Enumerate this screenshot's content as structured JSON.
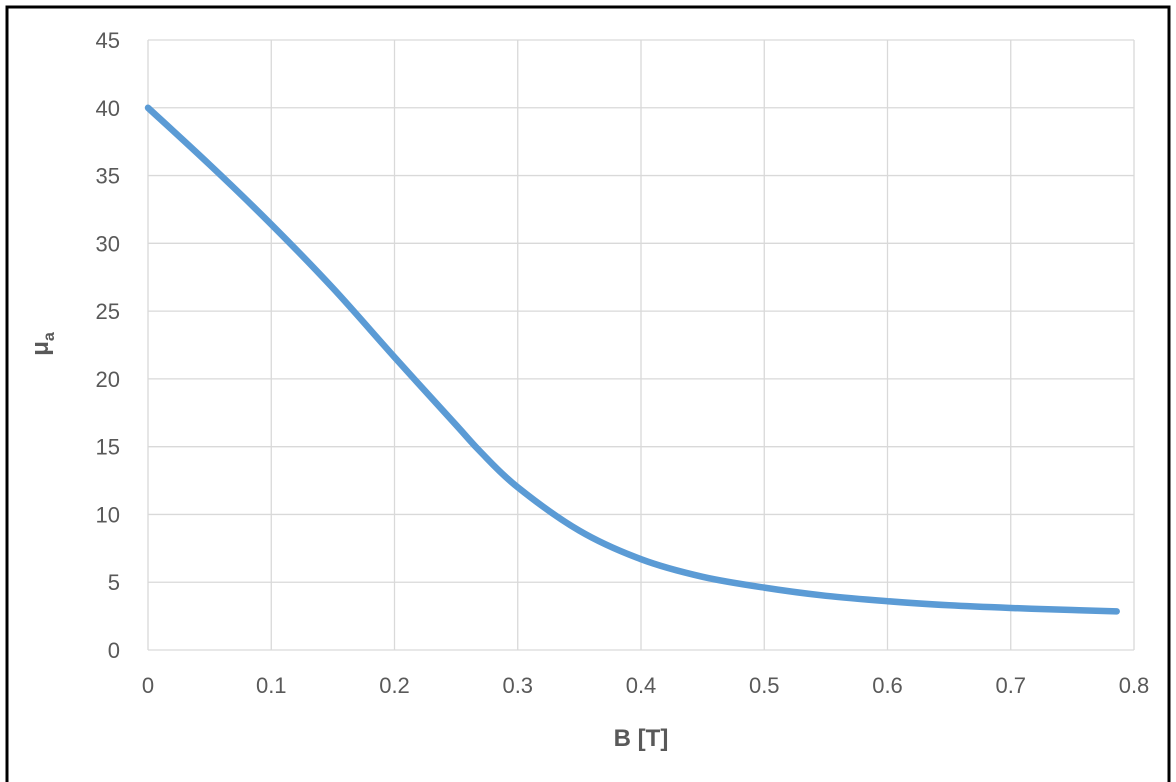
{
  "chart_data": {
    "type": "line",
    "title": "",
    "xlabel": "B [T]",
    "ylabel": "μ",
    "ylabel_subscript": "a",
    "xlim": [
      0,
      0.8
    ],
    "ylim": [
      0,
      45
    ],
    "x_ticks": [
      "0",
      "0.1",
      "0.2",
      "0.3",
      "0.4",
      "0.5",
      "0.6",
      "0.7",
      "0.8"
    ],
    "y_ticks": [
      "0",
      "5",
      "10",
      "15",
      "20",
      "25",
      "30",
      "35",
      "40",
      "45"
    ],
    "grid": true,
    "legend": "none",
    "colors": {
      "series": "#5b9bd5",
      "grid": "#d9d9d9",
      "axis_text": "#595959",
      "frame": "#000000"
    },
    "series": [
      {
        "x": [
          0,
          0.05,
          0.1,
          0.15,
          0.2,
          0.25,
          0.27,
          0.3,
          0.35,
          0.4,
          0.45,
          0.5,
          0.55,
          0.6,
          0.65,
          0.7,
          0.75,
          0.786
        ],
        "y": [
          40.0,
          35.8,
          31.4,
          26.7,
          21.6,
          16.6,
          14.6,
          12.0,
          8.8,
          6.7,
          5.4,
          4.6,
          4.0,
          3.6,
          3.3,
          3.1,
          2.95,
          2.85
        ]
      }
    ]
  }
}
